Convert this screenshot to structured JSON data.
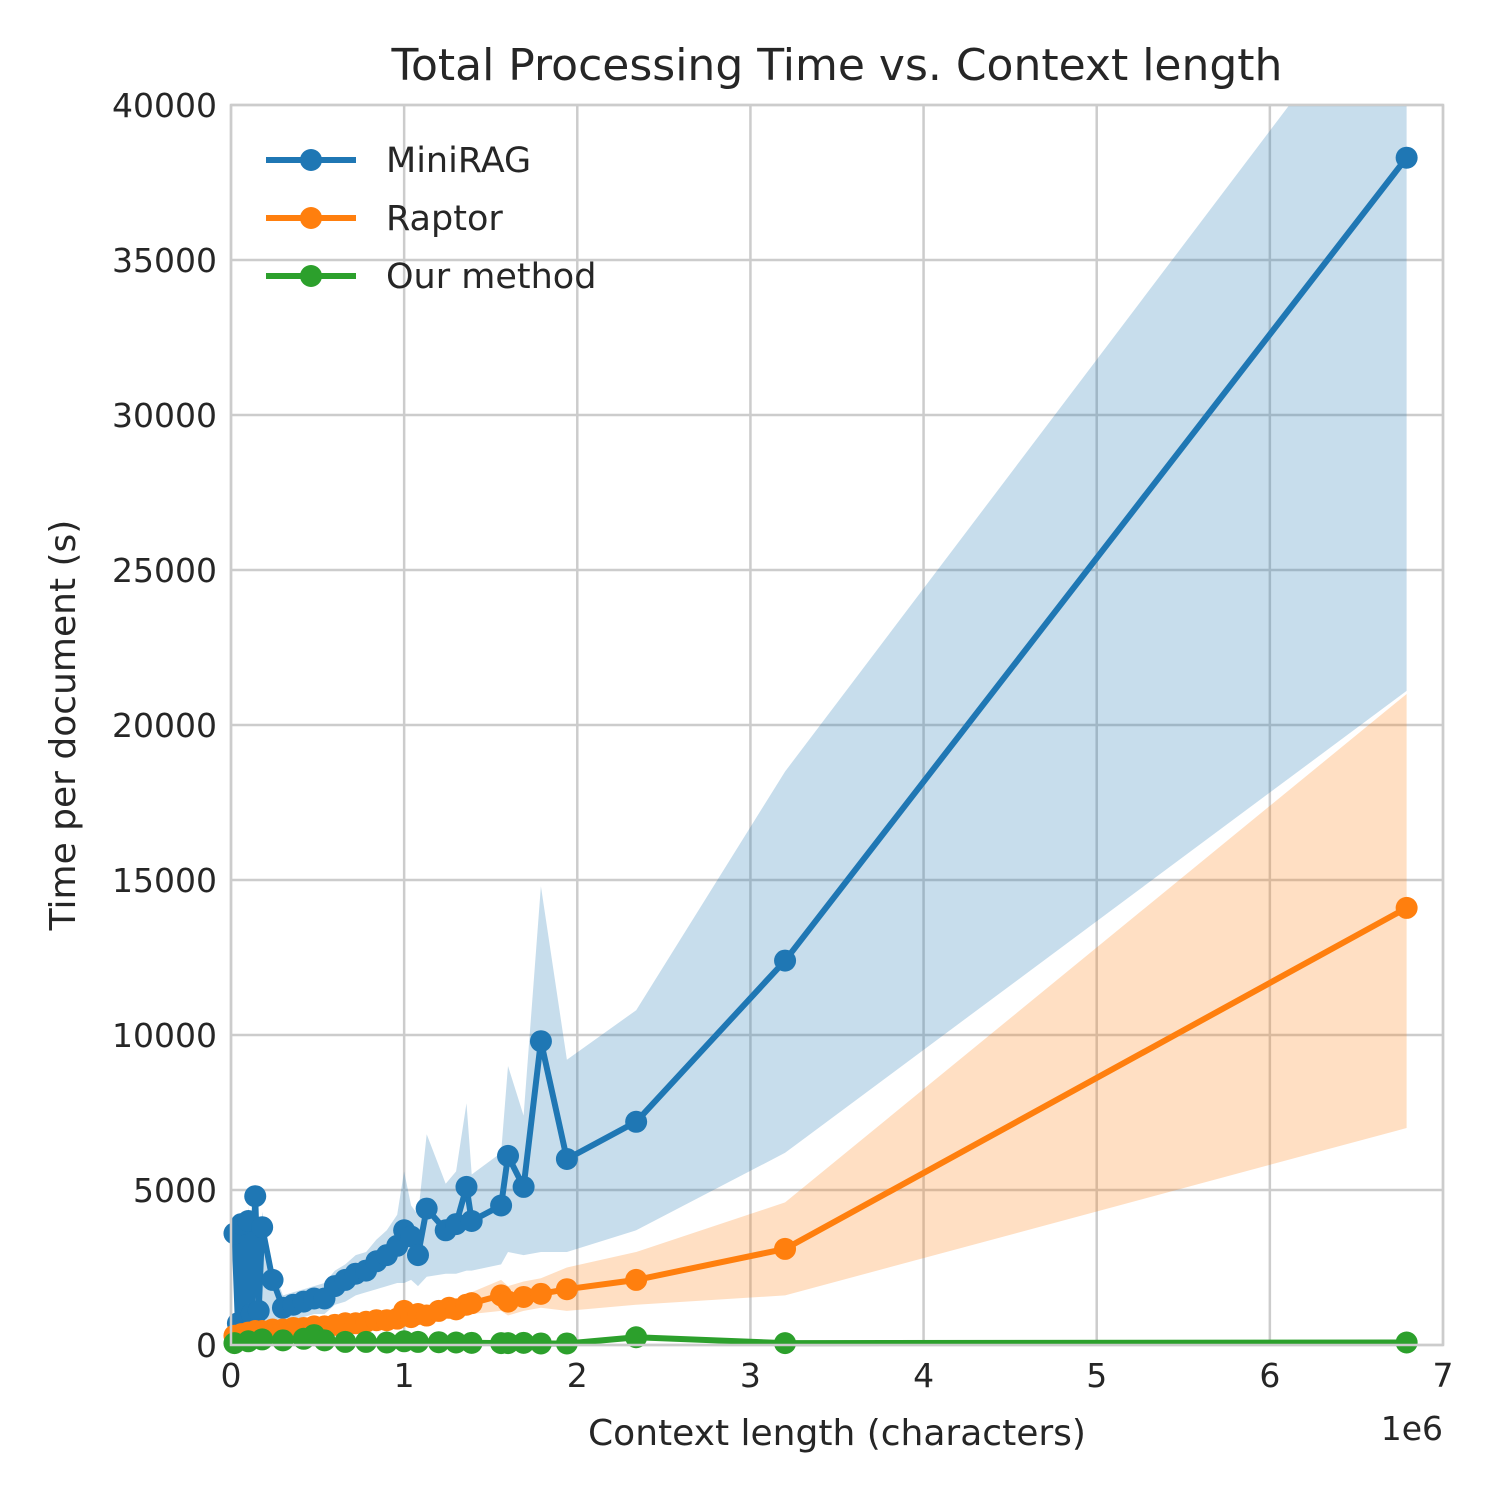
{
  "chart_data": {
    "type": "line",
    "title": "Total Processing Time vs. Context length",
    "xlabel": "Context length (characters)",
    "ylabel": "Time per document (s)",
    "x_offset_label": "1e6",
    "xlim": [
      0,
      7000000
    ],
    "ylim": [
      0,
      40000
    ],
    "x_ticks": [
      0,
      1000000,
      2000000,
      3000000,
      4000000,
      5000000,
      6000000,
      7000000
    ],
    "x_tick_labels": [
      "0",
      "1",
      "2",
      "3",
      "4",
      "5",
      "6",
      "7"
    ],
    "y_ticks": [
      0,
      5000,
      10000,
      15000,
      20000,
      25000,
      30000,
      35000,
      40000
    ],
    "y_tick_labels": [
      "0",
      "5000",
      "10000",
      "15000",
      "20000",
      "25000",
      "30000",
      "35000",
      "40000"
    ],
    "grid": true,
    "legend_position": "top-left",
    "series": [
      {
        "name": "MiniRAG",
        "color": "#1f77b4",
        "x": [
          20000,
          40000,
          60000,
          80000,
          100000,
          120000,
          140000,
          160000,
          180000,
          240000,
          300000,
          360000,
          420000,
          480000,
          540000,
          600000,
          660000,
          720000,
          780000,
          840000,
          900000,
          960000,
          1000000,
          1040000,
          1080000,
          1130000,
          1240000,
          1300000,
          1360000,
          1390000,
          1560000,
          1600000,
          1690000,
          1790000,
          1940000,
          2340000,
          3200000,
          6790000
        ],
        "y": [
          3600,
          700,
          3900,
          900,
          4000,
          1000,
          4800,
          1100,
          3800,
          2100,
          1200,
          1300,
          1400,
          1500,
          1500,
          1900,
          2100,
          2300,
          2400,
          2700,
          2900,
          3200,
          3700,
          3500,
          2900,
          4400,
          3700,
          3900,
          5100,
          4000,
          4500,
          6100,
          5100,
          9800,
          6000,
          7200,
          12400,
          38300
        ],
        "band_upper": [
          3900,
          1400,
          4300,
          1600,
          4500,
          1800,
          5200,
          2000,
          4300,
          2500,
          1600,
          1700,
          1800,
          1900,
          2000,
          2400,
          2600,
          2900,
          3000,
          3400,
          3700,
          4200,
          5600,
          4500,
          4200,
          6800,
          5200,
          5600,
          7800,
          5500,
          6200,
          9000,
          7400,
          14800,
          9200,
          10800,
          18500,
          45000
        ],
        "band_lower": [
          100,
          100,
          200,
          200,
          300,
          300,
          400,
          400,
          500,
          600,
          700,
          800,
          900,
          1000,
          1000,
          1300,
          1400,
          1600,
          1700,
          1800,
          1900,
          2000,
          2000,
          2100,
          1900,
          2200,
          2300,
          2300,
          2400,
          2400,
          2600,
          3000,
          2900,
          3000,
          3000,
          3700,
          6200,
          21100
        ]
      },
      {
        "name": "Raptor",
        "color": "#ff7f0e",
        "x": [
          20000,
          60000,
          100000,
          140000,
          180000,
          240000,
          300000,
          360000,
          420000,
          480000,
          540000,
          600000,
          660000,
          720000,
          780000,
          840000,
          900000,
          960000,
          1000000,
          1040000,
          1080000,
          1130000,
          1200000,
          1260000,
          1300000,
          1360000,
          1390000,
          1560000,
          1600000,
          1690000,
          1790000,
          1940000,
          2340000,
          3200000,
          6790000
        ],
        "y": [
          300,
          350,
          400,
          450,
          450,
          500,
          500,
          550,
          550,
          600,
          600,
          650,
          700,
          700,
          750,
          800,
          800,
          850,
          1100,
          900,
          1000,
          950,
          1100,
          1200,
          1150,
          1300,
          1350,
          1600,
          1400,
          1550,
          1650,
          1800,
          2100,
          3100,
          14100
        ],
        "band_upper": [
          500,
          550,
          600,
          650,
          650,
          700,
          750,
          800,
          800,
          850,
          850,
          900,
          950,
          950,
          1000,
          1050,
          1050,
          1100,
          1400,
          1200,
          1300,
          1250,
          1400,
          1500,
          1450,
          1650,
          1700,
          2100,
          1900,
          2050,
          2150,
          2500,
          3000,
          4600,
          21000
        ],
        "band_lower": [
          100,
          150,
          200,
          250,
          250,
          300,
          300,
          350,
          350,
          400,
          400,
          450,
          500,
          500,
          550,
          600,
          600,
          650,
          800,
          650,
          700,
          650,
          800,
          900,
          850,
          950,
          1000,
          1100,
          950,
          1100,
          1200,
          1100,
          1300,
          1600,
          7000
        ]
      },
      {
        "name": "Our method",
        "color": "#2ca02c",
        "x": [
          20000,
          100000,
          180000,
          300000,
          420000,
          480000,
          540000,
          660000,
          780000,
          900000,
          1000000,
          1080000,
          1200000,
          1300000,
          1390000,
          1560000,
          1600000,
          1690000,
          1790000,
          1940000,
          2340000,
          3200000,
          6790000
        ],
        "y": [
          60,
          120,
          180,
          150,
          200,
          320,
          150,
          100,
          100,
          80,
          120,
          100,
          90,
          80,
          70,
          60,
          60,
          70,
          50,
          50,
          250,
          60,
          80
        ],
        "band_upper": [
          120,
          200,
          280,
          240,
          300,
          420,
          240,
          180,
          170,
          150,
          200,
          170,
          160,
          150,
          130,
          120,
          120,
          130,
          110,
          110,
          340,
          120,
          140
        ],
        "band_lower": [
          10,
          40,
          80,
          60,
          100,
          220,
          60,
          30,
          30,
          20,
          40,
          30,
          20,
          20,
          15,
          10,
          10,
          15,
          10,
          10,
          160,
          10,
          20
        ]
      }
    ]
  }
}
